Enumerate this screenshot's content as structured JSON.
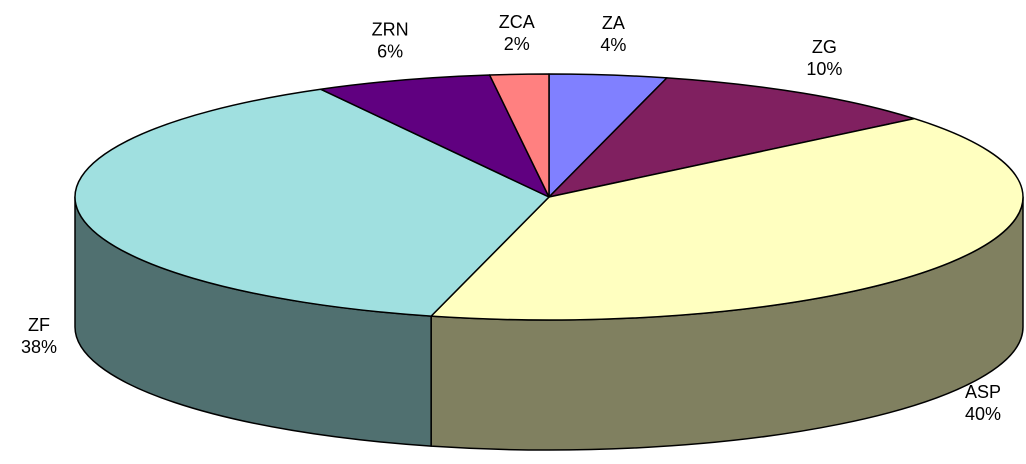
{
  "chart_data": {
    "type": "pie3d",
    "categories": [
      "ZA",
      "ZG",
      "ASP",
      "ZF",
      "ZRN",
      "ZCA"
    ],
    "values": [
      4,
      10,
      40,
      38,
      6,
      2
    ],
    "value_labels": [
      "4%",
      "10%",
      "40%",
      "38%",
      "6%",
      "2%"
    ],
    "colors": [
      "#8080ff",
      "#802060",
      "#ffffc0",
      "#a0e0e0",
      "#600080",
      "#ff8080"
    ]
  }
}
